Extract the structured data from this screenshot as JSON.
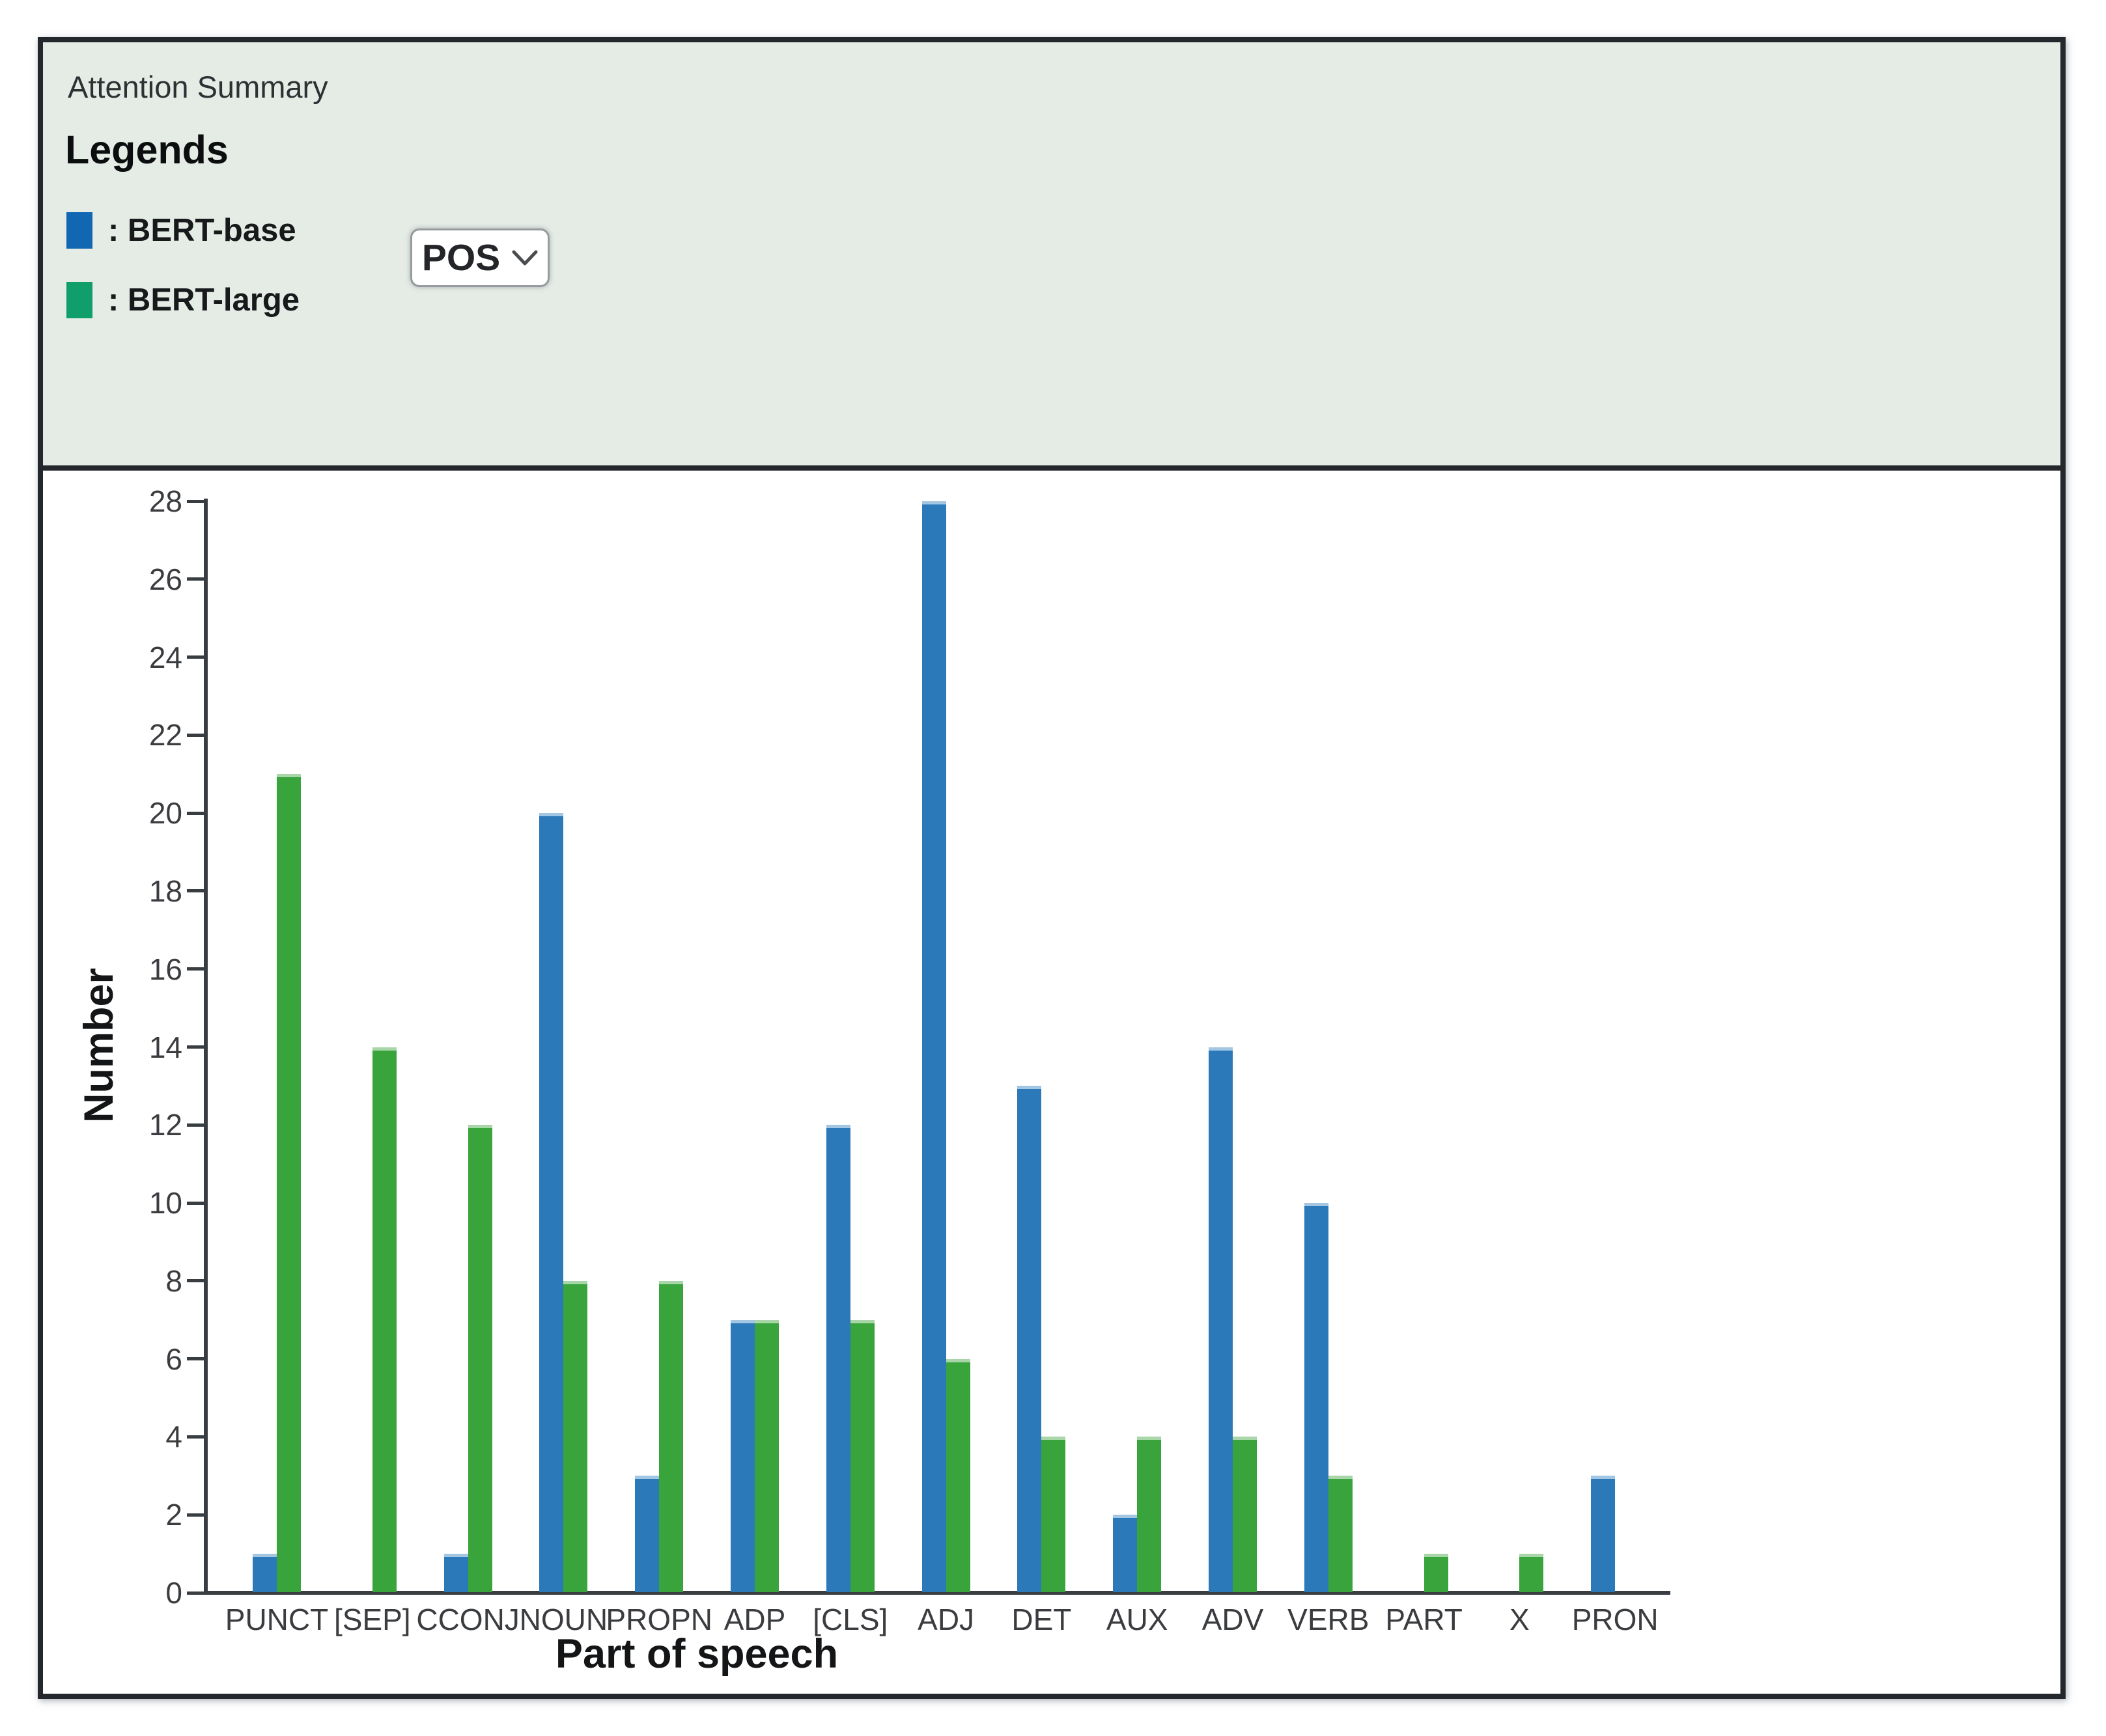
{
  "panel": {
    "title": "Attention Summary",
    "legends_heading": "Legends",
    "legend_items": [
      {
        "name": "BERT-base",
        "label": ": BERT-base",
        "swatch_color": "#1167b1"
      },
      {
        "name": "BERT-large",
        "label": ": BERT-large",
        "swatch_color": "#0f9e6c"
      }
    ],
    "pos_dropdown": {
      "value": "POS"
    }
  },
  "chart_data": {
    "type": "bar",
    "title": "",
    "xlabel": "Part of speech",
    "ylabel": "Number",
    "categories": [
      "PUNCT",
      "[SEP]",
      "CCONJ",
      "NOUN",
      "PROPN",
      "ADP",
      "[CLS]",
      "ADJ",
      "DET",
      "AUX",
      "ADV",
      "VERB",
      "PART",
      "X",
      "PRON"
    ],
    "series": [
      {
        "name": "BERT-base",
        "color": "#2b79b9",
        "cap_color": "#a3c7e3",
        "values": [
          1,
          0,
          1,
          20,
          3,
          7,
          12,
          28,
          13,
          2,
          14,
          10,
          0,
          0,
          3
        ]
      },
      {
        "name": "BERT-large",
        "color": "#3aa43c",
        "cap_color": "#a8d6a8",
        "values": [
          21,
          14,
          12,
          8,
          8,
          7,
          7,
          6,
          4,
          4,
          4,
          3,
          1,
          1,
          0
        ]
      }
    ],
    "ylim": [
      0,
      28
    ],
    "ytick_step": 2,
    "grid": false,
    "legend_position": "top-panel"
  }
}
